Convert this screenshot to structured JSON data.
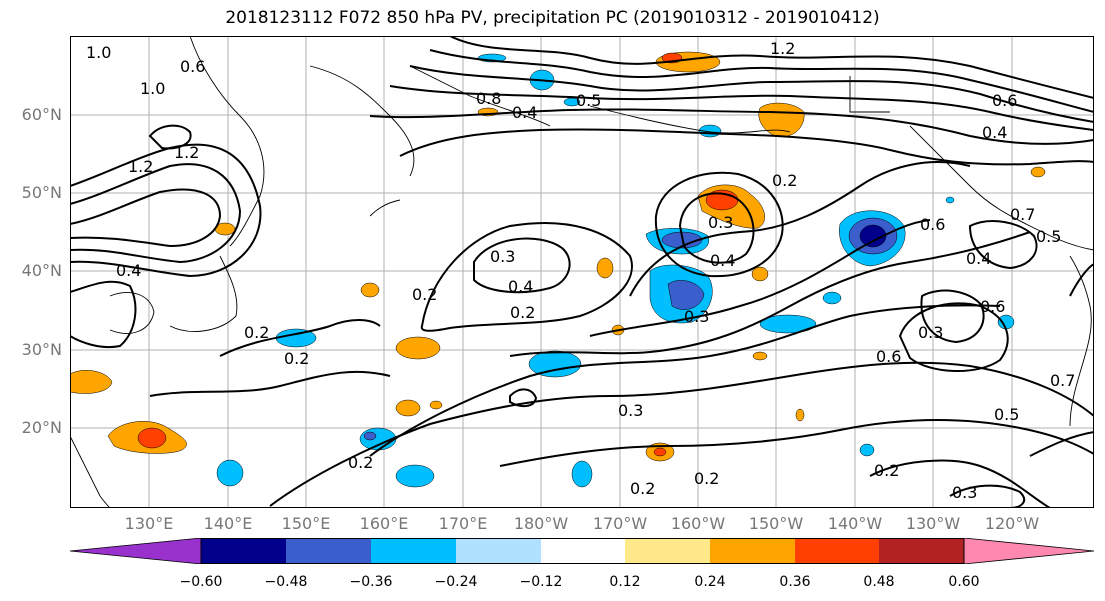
{
  "title": "2018123112 F072 850 hPa PV, precipitation PC (2019010312 - 2019010412)",
  "axes": {
    "lat_labels": [
      "60°N",
      "50°N",
      "40°N",
      "30°N",
      "20°N"
    ],
    "lon_labels": [
      "130°E",
      "140°E",
      "150°E",
      "160°E",
      "170°E",
      "180°W",
      "170°W",
      "160°W",
      "150°W",
      "140°W",
      "130°W",
      "120°W"
    ]
  },
  "colorbar": {
    "colors": [
      "#9932cc",
      "#00008b",
      "#3a5fcd",
      "#00bfff",
      "#b0e2ff",
      "#ffffff",
      "#ffe98a",
      "#ffa500",
      "#ff4000",
      "#b22222",
      "#ff88b0"
    ],
    "tick_labels": [
      "−0.60",
      "−0.48",
      "−0.36",
      "−0.24",
      "−0.12",
      "0.12",
      "0.24",
      "0.36",
      "0.48",
      "0.60"
    ]
  },
  "contour_labels": [
    "1.0",
    "0.6",
    "1.0",
    "1.2",
    "1.2",
    "0.8",
    "0.4",
    "0.5",
    "0.4",
    "0.2",
    "1.2",
    "0.6",
    "0.4",
    "0.2",
    "0.3",
    "0.4",
    "0.2",
    "0.2",
    "0.2",
    "0.3",
    "0.2",
    "0.3",
    "0.4",
    "0.2",
    "0.3",
    "0.2",
    "0.6",
    "0.7",
    "0.4",
    "0.6",
    "0.3",
    "0.6",
    "0.5",
    "0.2",
    "0.3",
    "0.7",
    "0.5"
  ],
  "fill_levels": [
    "0.12",
    "0.24",
    "0.36",
    "0.48",
    "-0.12",
    "-0.24",
    "-0.36",
    "-0.48",
    "-0.60"
  ]
}
